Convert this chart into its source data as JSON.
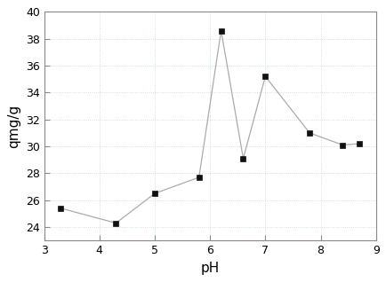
{
  "x": [
    3.3,
    4.3,
    5.0,
    5.8,
    6.2,
    6.6,
    7.0,
    7.8,
    8.4,
    8.7
  ],
  "y": [
    25.4,
    24.3,
    26.5,
    27.7,
    38.6,
    29.1,
    35.2,
    31.0,
    30.1,
    30.2
  ],
  "xlabel": "pH",
  "ylabel": "qmg/g",
  "xlim": [
    3,
    9
  ],
  "ylim": [
    23,
    40
  ],
  "xticks": [
    3,
    4,
    5,
    6,
    7,
    8,
    9
  ],
  "yticks": [
    24,
    26,
    28,
    30,
    32,
    34,
    36,
    38,
    40
  ],
  "line_color": "#aaaaaa",
  "marker_color": "#111111",
  "marker": "s",
  "marker_size": 5,
  "line_width": 0.9,
  "bg_color": "#ffffff",
  "grid_color": "#c8d8c8",
  "spine_color": "#888888",
  "xlabel_fontsize": 11,
  "ylabel_fontsize": 11,
  "tick_fontsize": 9
}
